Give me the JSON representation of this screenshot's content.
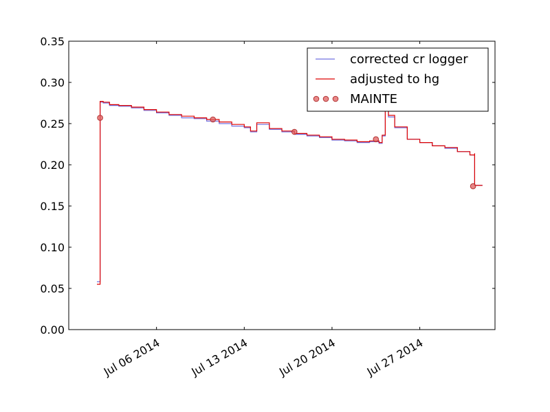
{
  "chart_data": {
    "type": "line",
    "title": "",
    "xlabel": "",
    "ylabel": "",
    "x_range": [
      "2014-06-29T00:00",
      "2014-08-02T00:00"
    ],
    "ylim": [
      0.0,
      0.35
    ],
    "yticks": [
      0.0,
      0.05,
      0.1,
      0.15,
      0.2,
      0.25,
      0.3,
      0.35
    ],
    "ytick_labels": [
      "0.00",
      "0.05",
      "0.10",
      "0.15",
      "0.20",
      "0.25",
      "0.30",
      "0.35"
    ],
    "xticks": [
      "2014-07-06T00:00",
      "2014-07-13T00:00",
      "2014-07-20T00:00",
      "2014-07-27T00:00"
    ],
    "xtick_labels": [
      "Jul 06 2014",
      "Jul 13 2014",
      "Jul 20 2014",
      "Jul 27 2014"
    ],
    "grid": false,
    "legend_position": "top-right",
    "series": [
      {
        "name": "corrected cr logger",
        "kind": "line",
        "color": "#7070e0",
        "points": [
          [
            "2014-07-01T06:00",
            0.058
          ],
          [
            "2014-07-01T12:00",
            0.058
          ],
          [
            "2014-07-01T12:00",
            0.276
          ],
          [
            "2014-07-01T18:00",
            0.275
          ],
          [
            "2014-07-02T06:00",
            0.272
          ],
          [
            "2014-07-03T00:00",
            0.271
          ],
          [
            "2014-07-04T00:00",
            0.269
          ],
          [
            "2014-07-05T00:00",
            0.266
          ],
          [
            "2014-07-06T00:00",
            0.263
          ],
          [
            "2014-07-07T00:00",
            0.26
          ],
          [
            "2014-07-08T00:00",
            0.257
          ],
          [
            "2014-07-09T00:00",
            0.256
          ],
          [
            "2014-07-10T00:00",
            0.253
          ],
          [
            "2014-07-11T00:00",
            0.25
          ],
          [
            "2014-07-12T00:00",
            0.247
          ],
          [
            "2014-07-13T00:00",
            0.245
          ],
          [
            "2014-07-13T12:00",
            0.24
          ],
          [
            "2014-07-14T00:00",
            0.249
          ],
          [
            "2014-07-15T00:00",
            0.243
          ],
          [
            "2014-07-16T00:00",
            0.24
          ],
          [
            "2014-07-17T00:00",
            0.237
          ],
          [
            "2014-07-18T00:00",
            0.235
          ],
          [
            "2014-07-19T00:00",
            0.233
          ],
          [
            "2014-07-20T00:00",
            0.23
          ],
          [
            "2014-07-21T00:00",
            0.229
          ],
          [
            "2014-07-22T00:00",
            0.227
          ],
          [
            "2014-07-23T00:00",
            0.228
          ],
          [
            "2014-07-23T18:00",
            0.226
          ],
          [
            "2014-07-24T00:00",
            0.235
          ],
          [
            "2014-07-24T06:00",
            0.275
          ],
          [
            "2014-07-24T12:00",
            0.258
          ],
          [
            "2014-07-25T00:00",
            0.245
          ],
          [
            "2014-07-26T00:00",
            0.231
          ],
          [
            "2014-07-27T00:00",
            0.227
          ],
          [
            "2014-07-28T00:00",
            0.223
          ],
          [
            "2014-07-29T00:00",
            0.22
          ],
          [
            "2014-07-30T00:00",
            0.216
          ],
          [
            "2014-07-31T00:00",
            0.212
          ],
          [
            "2014-07-31T09:00",
            0.213
          ],
          [
            "2014-07-31T09:00",
            0.175
          ],
          [
            "2014-08-01T00:00",
            0.175
          ]
        ]
      },
      {
        "name": "adjusted to hg",
        "kind": "line",
        "color": "#dd0000",
        "points": [
          [
            "2014-07-01T06:00",
            0.055
          ],
          [
            "2014-07-01T12:00",
            0.055
          ],
          [
            "2014-07-01T12:00",
            0.277
          ],
          [
            "2014-07-01T18:00",
            0.276
          ],
          [
            "2014-07-02T06:00",
            0.273
          ],
          [
            "2014-07-03T00:00",
            0.272
          ],
          [
            "2014-07-04T00:00",
            0.27
          ],
          [
            "2014-07-05T00:00",
            0.267
          ],
          [
            "2014-07-06T00:00",
            0.264
          ],
          [
            "2014-07-07T00:00",
            0.261
          ],
          [
            "2014-07-08T00:00",
            0.259
          ],
          [
            "2014-07-09T00:00",
            0.257
          ],
          [
            "2014-07-10T00:00",
            0.255
          ],
          [
            "2014-07-11T00:00",
            0.252
          ],
          [
            "2014-07-12T00:00",
            0.249
          ],
          [
            "2014-07-13T00:00",
            0.246
          ],
          [
            "2014-07-13T12:00",
            0.241
          ],
          [
            "2014-07-14T00:00",
            0.251
          ],
          [
            "2014-07-15T00:00",
            0.244
          ],
          [
            "2014-07-16T00:00",
            0.241
          ],
          [
            "2014-07-17T00:00",
            0.238
          ],
          [
            "2014-07-18T00:00",
            0.236
          ],
          [
            "2014-07-19T00:00",
            0.234
          ],
          [
            "2014-07-20T00:00",
            0.231
          ],
          [
            "2014-07-21T00:00",
            0.23
          ],
          [
            "2014-07-22T00:00",
            0.228
          ],
          [
            "2014-07-23T00:00",
            0.229
          ],
          [
            "2014-07-23T18:00",
            0.227
          ],
          [
            "2014-07-24T00:00",
            0.236
          ],
          [
            "2014-07-24T06:00",
            0.278
          ],
          [
            "2014-07-24T12:00",
            0.26
          ],
          [
            "2014-07-25T00:00",
            0.246
          ],
          [
            "2014-07-26T00:00",
            0.231
          ],
          [
            "2014-07-27T00:00",
            0.227
          ],
          [
            "2014-07-28T00:00",
            0.223
          ],
          [
            "2014-07-29T00:00",
            0.221
          ],
          [
            "2014-07-30T00:00",
            0.216
          ],
          [
            "2014-07-31T00:00",
            0.212
          ],
          [
            "2014-07-31T09:00",
            0.214
          ],
          [
            "2014-07-31T09:00",
            0.175
          ],
          [
            "2014-08-01T00:00",
            0.175
          ]
        ]
      },
      {
        "name": "MAINTE",
        "kind": "scatter",
        "color": "#e06060",
        "edge_color": "#b03030",
        "points": [
          [
            "2014-07-01T12:00",
            0.257
          ],
          [
            "2014-07-10T12:00",
            0.255
          ],
          [
            "2014-07-17T00:00",
            0.24
          ],
          [
            "2014-07-23T12:00",
            0.231
          ],
          [
            "2014-07-31T06:00",
            0.174
          ]
        ]
      }
    ]
  }
}
